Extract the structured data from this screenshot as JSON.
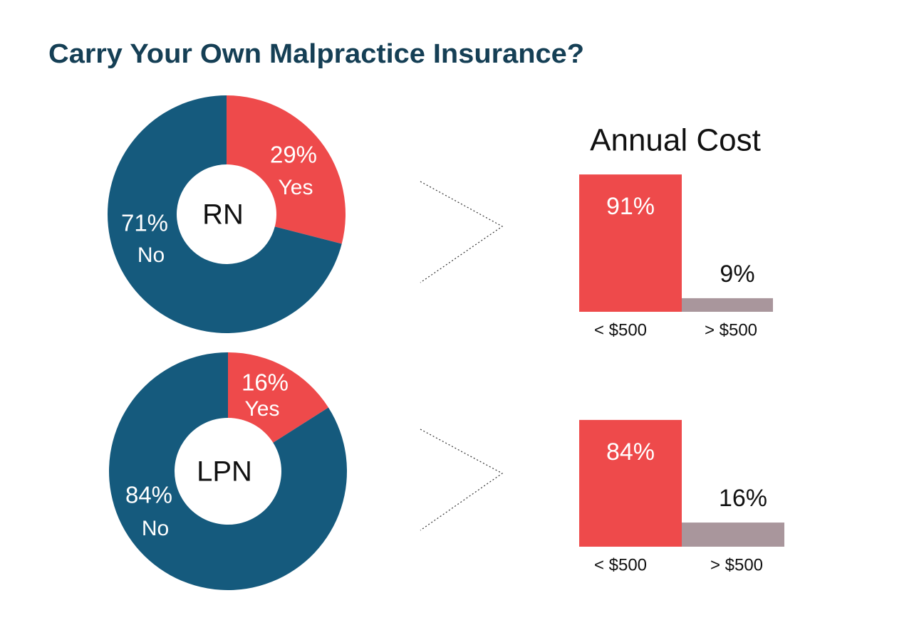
{
  "title": "Carry Your Own Malpractice Insurance?",
  "chart_data": [
    {
      "type": "pie",
      "center_label": "RN",
      "categories": [
        "Yes",
        "No"
      ],
      "values": [
        29,
        71
      ],
      "value_labels": [
        "29%",
        "71%"
      ],
      "colors": [
        "#ee4a4b",
        "#155a7d"
      ]
    },
    {
      "type": "bar",
      "title": "Annual Cost",
      "categories": [
        "< $500",
        "> $500"
      ],
      "values": [
        91,
        9
      ],
      "value_labels": [
        "91%",
        "9%"
      ],
      "colors": [
        "#ee4a4b",
        "#a9969c"
      ]
    },
    {
      "type": "pie",
      "center_label": "LPN",
      "categories": [
        "Yes",
        "No"
      ],
      "values": [
        16,
        84
      ],
      "value_labels": [
        "16%",
        "84%"
      ],
      "colors": [
        "#ee4a4b",
        "#155a7d"
      ]
    },
    {
      "type": "bar",
      "categories": [
        "< $500",
        "> $500"
      ],
      "values": [
        84,
        16
      ],
      "value_labels": [
        "84%",
        "16%"
      ],
      "colors": [
        "#ee4a4b",
        "#a9969c"
      ]
    }
  ]
}
